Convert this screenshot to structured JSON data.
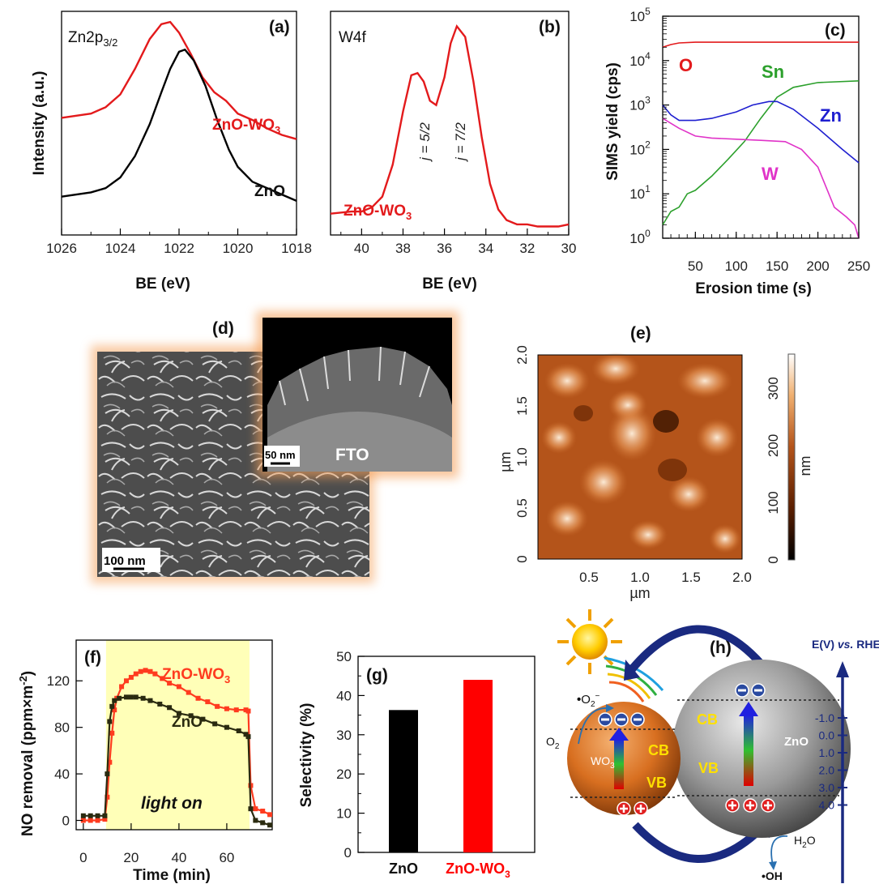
{
  "panels": {
    "a": {
      "label": "(a)",
      "element_label": "Zn2p",
      "element_sub": "3/2",
      "xlabel": "BE (eV)",
      "ylabel": "Intensity (a.u.)",
      "series_red": "ZnO-WO",
      "series_red_sub": "3",
      "series_black": "ZnO",
      "xticks": [
        "1026",
        "1024",
        "1022",
        "1020",
        "1018"
      ]
    },
    "b": {
      "label": "(b)",
      "element_label": "W4f",
      "xlabel": "BE (eV)",
      "series": "ZnO-WO",
      "series_sub": "3",
      "peak1": "j = 5/2",
      "peak2": "j = 7/2",
      "xticks": [
        "40",
        "38",
        "36",
        "34",
        "32",
        "30"
      ]
    },
    "c": {
      "label": "(c)",
      "xlabel": "Erosion time (s)",
      "ylabel": "SIMS yield (cps)",
      "yticks_base": "10",
      "yticks_exp": [
        "0",
        "1",
        "2",
        "3",
        "4",
        "5"
      ],
      "xticks": [
        "50",
        "100",
        "150",
        "200",
        "250"
      ],
      "series": [
        "O",
        "Sn",
        "Zn",
        "W"
      ]
    },
    "d": {
      "label": "(d)",
      "scale_main": "100 nm",
      "scale_inset": "50 nm",
      "substrate": "FTO"
    },
    "e": {
      "label": "(e)",
      "ylabel": "µm",
      "xlabel": "µm",
      "cbar_label": "nm",
      "yticks": [
        "2.0",
        "1.5",
        "1.0",
        "0.5",
        "0"
      ],
      "xticks": [
        "0.5",
        "1.0",
        "1.5",
        "2.0"
      ],
      "cbar_ticks": [
        "300",
        "200",
        "100",
        "0"
      ]
    },
    "f": {
      "label": "(f)",
      "xlabel": "Time (min)",
      "ylabel": "NO removal (ppm×m",
      "ylabel_sup": "-2",
      "ylabel_end": ")",
      "annotation": "light on",
      "series_red": "ZnO-WO",
      "series_red_sub": "3",
      "series_dark": "ZnO",
      "xticks": [
        "0",
        "20",
        "40",
        "60"
      ],
      "yticks": [
        "0",
        "40",
        "80",
        "120"
      ]
    },
    "g": {
      "label": "(g)",
      "ylabel": "Selectivity (%)",
      "yticks": [
        "0",
        "10",
        "20",
        "30",
        "40",
        "50"
      ],
      "cat1": "ZnO",
      "cat2": "ZnO-WO",
      "cat2_sub": "3"
    },
    "h": {
      "label": "(h)",
      "axis_title_1": "E(V) ",
      "axis_title_vs": "vs.",
      "axis_title_2": " RHE",
      "ticks": [
        "-1.0",
        "0.0",
        "1.0",
        "2.0",
        "3.0",
        "4.0"
      ],
      "superoxide": "O",
      "o2": "O",
      "h2o": "H",
      "hydroxyl": "•OH",
      "cb": "CB",
      "vb": "VB",
      "wo3": "WO",
      "zno": "ZnO"
    }
  },
  "chart_data": [
    {
      "panel": "a",
      "type": "line",
      "title": "Zn2p3/2",
      "xlabel": "BE (eV)",
      "ylabel": "Intensity (a.u.)",
      "xlim": [
        1026,
        1018
      ],
      "series": [
        {
          "name": "ZnO-WO3",
          "color": "#e31a1c",
          "x": [
            1026,
            1025,
            1024.5,
            1024,
            1023.5,
            1023,
            1022.6,
            1022.3,
            1022,
            1021.6,
            1021.2,
            1020.8,
            1020.4,
            1020,
            1019.5,
            1019,
            1018.5,
            1018
          ],
          "y": [
            0.55,
            0.57,
            0.6,
            0.66,
            0.78,
            0.92,
            0.99,
            1.0,
            0.95,
            0.85,
            0.74,
            0.67,
            0.63,
            0.57,
            0.54,
            0.5,
            0.47,
            0.45
          ]
        },
        {
          "name": "ZnO",
          "color": "#000000",
          "x": [
            1026,
            1025,
            1024.5,
            1024,
            1023.5,
            1023,
            1022.6,
            1022.3,
            1022,
            1021.8,
            1021.5,
            1021.1,
            1020.7,
            1020.3,
            1020,
            1019.5,
            1019,
            1018.5,
            1018
          ],
          "y": [
            0.18,
            0.2,
            0.22,
            0.27,
            0.37,
            0.52,
            0.67,
            0.78,
            0.86,
            0.87,
            0.82,
            0.7,
            0.54,
            0.4,
            0.32,
            0.25,
            0.22,
            0.19,
            0.16
          ]
        }
      ]
    },
    {
      "panel": "b",
      "type": "line",
      "title": "W4f",
      "xlabel": "BE (eV)",
      "xlim": [
        41.5,
        30
      ],
      "series": [
        {
          "name": "ZnO-WO3",
          "color": "#e31a1c",
          "x": [
            41.5,
            40.5,
            40,
            39.5,
            39,
            38.5,
            38,
            37.6,
            37.3,
            37,
            36.7,
            36.4,
            36,
            35.7,
            35.4,
            35,
            34.6,
            34.2,
            33.8,
            33.4,
            33,
            32.5,
            32,
            31.5,
            31,
            30.5,
            30
          ],
          "y": [
            0.1,
            0.11,
            0.11,
            0.13,
            0.18,
            0.33,
            0.58,
            0.75,
            0.76,
            0.72,
            0.63,
            0.61,
            0.74,
            0.9,
            0.98,
            0.93,
            0.72,
            0.46,
            0.24,
            0.12,
            0.07,
            0.05,
            0.05,
            0.04,
            0.04,
            0.04,
            0.05
          ]
        }
      ]
    },
    {
      "panel": "c",
      "type": "line",
      "xlabel": "Erosion time (s)",
      "ylabel": "SIMS yield (cps)",
      "xlim": [
        10,
        250
      ],
      "ylim": [
        1,
        100000
      ],
      "yscale": "log",
      "series": [
        {
          "name": "O",
          "color": "#e31a1c",
          "x": [
            10,
            20,
            30,
            50,
            100,
            150,
            200,
            250
          ],
          "y": [
            20000,
            23000,
            25000,
            26000,
            26000,
            26000,
            26000,
            26000
          ]
        },
        {
          "name": "Sn",
          "color": "#2ca02c",
          "x": [
            10,
            20,
            30,
            40,
            50,
            70,
            90,
            110,
            130,
            150,
            170,
            200,
            250
          ],
          "y": [
            2,
            4,
            5,
            10,
            12,
            25,
            60,
            150,
            500,
            1500,
            2500,
            3200,
            3500
          ]
        },
        {
          "name": "Zn",
          "color": "#1f1fd0",
          "x": [
            10,
            20,
            30,
            50,
            70,
            100,
            120,
            140,
            150,
            170,
            200,
            230,
            250
          ],
          "y": [
            1000,
            600,
            450,
            450,
            500,
            700,
            1000,
            1200,
            1200,
            800,
            300,
            100,
            50
          ]
        },
        {
          "name": "W",
          "color": "#e033c8",
          "x": [
            10,
            30,
            50,
            70,
            100,
            130,
            160,
            180,
            200,
            220,
            235,
            245,
            250
          ],
          "y": [
            500,
            300,
            200,
            180,
            170,
            160,
            150,
            100,
            40,
            5,
            3,
            2,
            1
          ]
        }
      ]
    },
    {
      "panel": "f",
      "type": "line",
      "xlabel": "Time (min)",
      "ylabel": "NO removal (ppm×m-2)",
      "xlim": [
        -3,
        79
      ],
      "ylim": [
        -8,
        155
      ],
      "series": [
        {
          "name": "ZnO-WO3",
          "color": "#ff3b1f",
          "x": [
            0,
            3,
            6,
            9,
            10,
            11,
            12,
            13,
            14,
            16,
            18,
            20,
            22,
            24,
            26,
            28,
            30,
            33,
            36,
            40,
            44,
            48,
            52,
            56,
            60,
            64,
            68,
            69,
            70,
            72,
            75,
            78
          ],
          "y": [
            0,
            0,
            0,
            1,
            20,
            50,
            75,
            95,
            105,
            115,
            120,
            123,
            126,
            128,
            129,
            128,
            126,
            122,
            118,
            115,
            110,
            105,
            102,
            98,
            96,
            95,
            95,
            94,
            30,
            10,
            8,
            5
          ]
        },
        {
          "name": "ZnO",
          "color": "#2a2a10",
          "x": [
            0,
            3,
            6,
            9,
            10,
            11,
            12,
            13,
            15,
            18,
            20,
            22,
            25,
            28,
            32,
            36,
            40,
            45,
            50,
            55,
            60,
            65,
            68,
            69,
            70,
            72,
            75,
            78
          ],
          "y": [
            4,
            4,
            4,
            4,
            40,
            85,
            98,
            103,
            105,
            106,
            106,
            106,
            105,
            103,
            100,
            97,
            92,
            90,
            87,
            83,
            80,
            77,
            74,
            72,
            10,
            0,
            -2,
            -4
          ]
        }
      ]
    },
    {
      "panel": "g",
      "type": "bar",
      "ylabel": "Selectivity (%)",
      "ylim": [
        0,
        50
      ],
      "categories": [
        "ZnO",
        "ZnO-WO3"
      ],
      "series": [
        {
          "values": [
            36.3,
            44.0
          ]
        }
      ],
      "colors": [
        "#000000",
        "#ff0000"
      ]
    }
  ]
}
